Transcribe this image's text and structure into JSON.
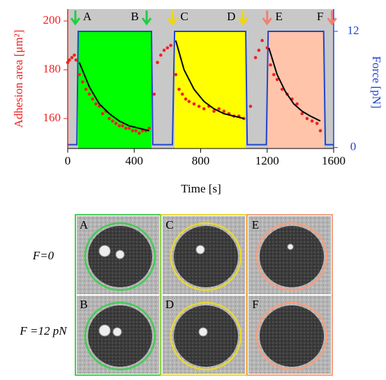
{
  "chart_data": {
    "type": "scatter",
    "xlabel": "Time  [s]",
    "ylabel": "Adhesion area [μm²]",
    "y2label": "Force [pN]",
    "xlim": [
      0,
      1600
    ],
    "xticks": [
      0,
      400,
      800,
      1200,
      1600
    ],
    "ylim": [
      147.7,
      204.9
    ],
    "yticks": [
      160,
      180,
      200
    ],
    "y2lim": [
      -0.1,
      14.3
    ],
    "y2ticks": [
      0,
      12
    ],
    "background": "#c8c8c8",
    "series": [
      {
        "kind": "points",
        "color": "#ee2222",
        "x": [
          0,
          10,
          25,
          40,
          50,
          70,
          90,
          110,
          130,
          150,
          170,
          190,
          210,
          230,
          250,
          270,
          290,
          310,
          330,
          350,
          370,
          390,
          410,
          430,
          450,
          470,
          490,
          520,
          540,
          560,
          580,
          600,
          620,
          650,
          670,
          690,
          710,
          730,
          760,
          790,
          820,
          850,
          880,
          910,
          940,
          970,
          1000,
          1030,
          1060,
          1100,
          1130,
          1150,
          1170,
          1200,
          1220,
          1240,
          1260,
          1290,
          1320,
          1350,
          1380,
          1410,
          1440,
          1470,
          1500,
          1520
        ],
        "values": [
          183,
          184,
          185,
          186,
          184,
          178,
          175,
          172,
          170,
          168,
          166,
          165,
          162,
          163,
          160,
          159,
          158,
          157,
          157,
          156,
          156,
          155,
          155,
          154,
          155,
          155,
          156,
          170,
          183,
          186,
          188,
          189,
          190,
          178,
          172,
          170,
          168,
          167,
          166,
          165,
          164,
          165,
          163,
          164,
          163,
          162,
          161,
          161,
          160,
          165,
          185,
          188,
          192,
          189,
          182,
          178,
          176,
          172,
          170,
          168,
          166,
          162,
          160,
          159,
          158,
          155
        ]
      },
      {
        "kind": "fit",
        "color": "#000000",
        "x": [
          70,
          130,
          190,
          250,
          310,
          370,
          430,
          490
        ],
        "values": [
          183,
          173,
          166,
          162,
          159,
          157,
          156,
          155
        ]
      },
      {
        "kind": "fit",
        "color": "#000000",
        "x": [
          650,
          700,
          760,
          820,
          880,
          940,
          1000,
          1060
        ],
        "values": [
          192,
          180,
          172,
          167,
          164,
          162,
          161,
          160
        ]
      },
      {
        "kind": "fit",
        "color": "#000000",
        "x": [
          1210,
          1260,
          1310,
          1360,
          1410,
          1460,
          1520
        ],
        "values": [
          189,
          178,
          171,
          166,
          163,
          161,
          159
        ]
      },
      {
        "kind": "force",
        "axis": "y2",
        "color": "#2244cc",
        "x": [
          0,
          55,
          63,
          504,
          512,
          630,
          643,
          1071,
          1080,
          1195,
          1206,
          1540,
          1550,
          1600
        ],
        "values": [
          0.3,
          0.3,
          12,
          12,
          0.3,
          0.3,
          12,
          12,
          0.3,
          0.3,
          12,
          12,
          0.3,
          0.3
        ]
      }
    ],
    "force_periods": [
      {
        "start": 63,
        "end": 504,
        "value": 12,
        "color": "#00ff00"
      },
      {
        "start": 643,
        "end": 1071,
        "value": 12,
        "color": "#ffff00"
      },
      {
        "start": 1206,
        "end": 1540,
        "value": 12,
        "color": "#ffc4aa"
      }
    ],
    "annotations": [
      {
        "text": "A",
        "x": 46,
        "color": "#22cc44"
      },
      {
        "text": "B",
        "x": 475,
        "color": "#22cc44"
      },
      {
        "text": "C",
        "x": 630,
        "color": "#f0d800"
      },
      {
        "text": "D",
        "x": 1055,
        "color": "#f0d800"
      },
      {
        "text": "E",
        "x": 1200,
        "color": "#f08070"
      },
      {
        "text": "F",
        "x": 1590,
        "color": "#f08070"
      }
    ]
  },
  "panels": {
    "row_labels": [
      "F=0",
      "F =12 pN"
    ],
    "cells": [
      {
        "label": "A",
        "color": "#44cc55"
      },
      {
        "label": "C",
        "color": "#e8d830"
      },
      {
        "label": "E",
        "color": "#f4a080"
      },
      {
        "label": "B",
        "color": "#44cc55"
      },
      {
        "label": "D",
        "color": "#e8d830"
      },
      {
        "label": "F",
        "color": "#f4a080"
      }
    ]
  }
}
